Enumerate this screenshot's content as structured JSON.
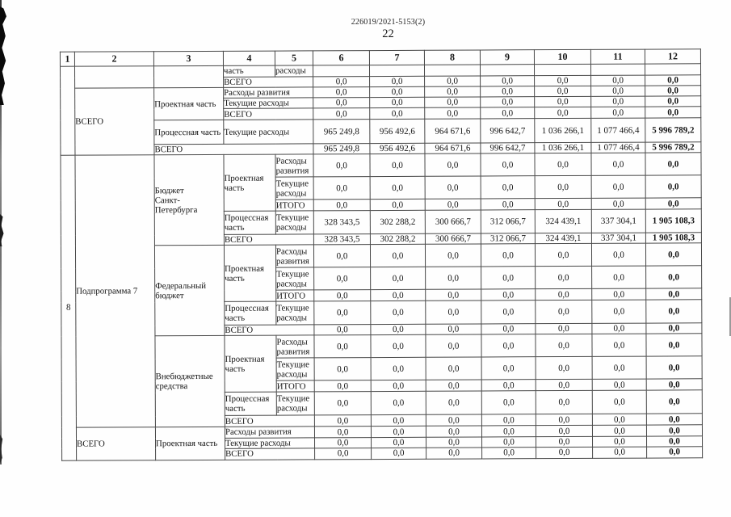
{
  "page": {
    "doc_ref": "226019/2021-5153(2)",
    "page_number": "22"
  },
  "table": {
    "rows": [
      {
        "cells": [
          {
            "t": "1",
            "k": "h"
          },
          {
            "t": "2",
            "k": "h"
          },
          {
            "t": "3",
            "k": "h"
          },
          {
            "t": "4",
            "k": "h"
          },
          {
            "t": "5",
            "k": "h"
          },
          {
            "t": "6",
            "k": "h"
          },
          {
            "t": "7",
            "k": "h"
          },
          {
            "t": "8",
            "k": "h"
          },
          {
            "t": "9",
            "k": "h"
          },
          {
            "t": "10",
            "k": "h"
          },
          {
            "t": "11",
            "k": "h"
          },
          {
            "t": "12",
            "k": "h"
          }
        ]
      },
      {
        "cells": [
          {
            "t": "",
            "k": "e",
            "rs": 7
          },
          {
            "t": "",
            "k": "e",
            "rs": 2
          },
          {
            "t": "",
            "k": "e",
            "rs": 2
          },
          {
            "t": "часть",
            "k": "l"
          },
          {
            "t": "расходы",
            "k": "l"
          },
          {
            "t": "",
            "k": "e"
          },
          {
            "t": "",
            "k": "e"
          },
          {
            "t": "",
            "k": "e"
          },
          {
            "t": "",
            "k": "e"
          },
          {
            "t": "",
            "k": "e"
          },
          {
            "t": "",
            "k": "e"
          },
          {
            "t": "",
            "k": "e"
          }
        ]
      },
      {
        "cells": [
          {
            "t": "ВСЕГО",
            "k": "l",
            "cs": 2
          },
          {
            "t": "0,0",
            "k": "n"
          },
          {
            "t": "0,0",
            "k": "n"
          },
          {
            "t": "0,0",
            "k": "n"
          },
          {
            "t": "0,0",
            "k": "n"
          },
          {
            "t": "0,0",
            "k": "n"
          },
          {
            "t": "0,0",
            "k": "n"
          },
          {
            "t": "0,0",
            "k": "nb"
          }
        ]
      },
      {
        "cells": [
          {
            "t": "ВСЕГО",
            "k": "l",
            "rs": 5
          },
          {
            "t": "Проектная часть",
            "k": "l",
            "rs": 3
          },
          {
            "t": "Расходы развития",
            "k": "l",
            "cs": 2
          },
          {
            "t": "0,0",
            "k": "n"
          },
          {
            "t": "0,0",
            "k": "n"
          },
          {
            "t": "0,0",
            "k": "n"
          },
          {
            "t": "0,0",
            "k": "n"
          },
          {
            "t": "0,0",
            "k": "n"
          },
          {
            "t": "0,0",
            "k": "n"
          },
          {
            "t": "0,0",
            "k": "nb"
          }
        ]
      },
      {
        "cells": [
          {
            "t": "Текущие расходы",
            "k": "l",
            "cs": 2
          },
          {
            "t": "0,0",
            "k": "n"
          },
          {
            "t": "0,0",
            "k": "n"
          },
          {
            "t": "0,0",
            "k": "n"
          },
          {
            "t": "0,0",
            "k": "n"
          },
          {
            "t": "0,0",
            "k": "n"
          },
          {
            "t": "0,0",
            "k": "n"
          },
          {
            "t": "0,0",
            "k": "nb"
          }
        ]
      },
      {
        "cells": [
          {
            "t": "ВСЕГО",
            "k": "l",
            "cs": 2
          },
          {
            "t": "0,0",
            "k": "n"
          },
          {
            "t": "0,0",
            "k": "n"
          },
          {
            "t": "0,0",
            "k": "n"
          },
          {
            "t": "0,0",
            "k": "n"
          },
          {
            "t": "0,0",
            "k": "n"
          },
          {
            "t": "0,0",
            "k": "n"
          },
          {
            "t": "0,0",
            "k": "nb"
          }
        ]
      },
      {
        "cells": [
          {
            "t": "Процессная часть",
            "k": "l"
          },
          {
            "t": "Текущие расходы",
            "k": "l",
            "cs": 2
          },
          {
            "t": "965 249,8",
            "k": "n"
          },
          {
            "t": "956 492,6",
            "k": "n"
          },
          {
            "t": "964 671,6",
            "k": "n"
          },
          {
            "t": "996 642,7",
            "k": "n"
          },
          {
            "t": "1 036 266,1",
            "k": "n"
          },
          {
            "t": "1 077 466,4",
            "k": "n"
          },
          {
            "t": "5 996 789,2",
            "k": "nb"
          }
        ]
      },
      {
        "cells": [
          {
            "t": "ВСЕГО",
            "k": "l",
            "cs": 3
          },
          {
            "t": "965 249,8",
            "k": "n"
          },
          {
            "t": "956 492,6",
            "k": "n"
          },
          {
            "t": "964 671,6",
            "k": "n"
          },
          {
            "t": "996 642,7",
            "k": "n"
          },
          {
            "t": "1 036 266,1",
            "k": "n"
          },
          {
            "t": "1 077 466,4",
            "k": "n"
          },
          {
            "t": "5 996 789,2",
            "k": "nb"
          }
        ]
      },
      {
        "cells": [
          {
            "t": "8",
            "k": "n",
            "rs": 18
          },
          {
            "t": "Подпрограмма 7",
            "k": "l",
            "rs": 15
          },
          {
            "t": "Бюджет\nСанкт-\nПетербурга",
            "k": "l",
            "rs": 5
          },
          {
            "t": "Проектная часть",
            "k": "l",
            "rs": 3
          },
          {
            "t": "Расходы развития",
            "k": "l"
          },
          {
            "t": "0,0",
            "k": "n"
          },
          {
            "t": "0,0",
            "k": "n"
          },
          {
            "t": "0,0",
            "k": "n"
          },
          {
            "t": "0,0",
            "k": "n"
          },
          {
            "t": "0,0",
            "k": "n"
          },
          {
            "t": "0,0",
            "k": "n"
          },
          {
            "t": "0,0",
            "k": "nb"
          }
        ]
      },
      {
        "cells": [
          {
            "t": "Текущие расходы",
            "k": "l"
          },
          {
            "t": "0,0",
            "k": "n"
          },
          {
            "t": "0,0",
            "k": "n"
          },
          {
            "t": "0,0",
            "k": "n"
          },
          {
            "t": "0,0",
            "k": "n"
          },
          {
            "t": "0,0",
            "k": "n"
          },
          {
            "t": "0,0",
            "k": "n"
          },
          {
            "t": "0,0",
            "k": "nb"
          }
        ]
      },
      {
        "cells": [
          {
            "t": "ИТОГО",
            "k": "l"
          },
          {
            "t": "0,0",
            "k": "n"
          },
          {
            "t": "0,0",
            "k": "n"
          },
          {
            "t": "0,0",
            "k": "n"
          },
          {
            "t": "0,0",
            "k": "n"
          },
          {
            "t": "0,0",
            "k": "n"
          },
          {
            "t": "0,0",
            "k": "n"
          },
          {
            "t": "0,0",
            "k": "nb"
          }
        ]
      },
      {
        "cells": [
          {
            "t": "Процессная часть",
            "k": "l"
          },
          {
            "t": "Текущие расходы",
            "k": "l"
          },
          {
            "t": "328 343,5",
            "k": "n"
          },
          {
            "t": "302 288,2",
            "k": "n"
          },
          {
            "t": "300 666,7",
            "k": "n"
          },
          {
            "t": "312 066,7",
            "k": "n"
          },
          {
            "t": "324 439,1",
            "k": "n"
          },
          {
            "t": "337 304,1",
            "k": "n"
          },
          {
            "t": "1 905 108,3",
            "k": "nb"
          }
        ]
      },
      {
        "cells": [
          {
            "t": "ВСЕГО",
            "k": "l",
            "cs": 2
          },
          {
            "t": "328 343,5",
            "k": "n"
          },
          {
            "t": "302 288,2",
            "k": "n"
          },
          {
            "t": "300 666,7",
            "k": "n"
          },
          {
            "t": "312 066,7",
            "k": "n"
          },
          {
            "t": "324 439,1",
            "k": "n"
          },
          {
            "t": "337 304,1",
            "k": "n"
          },
          {
            "t": "1 905 108,3",
            "k": "nb"
          }
        ]
      },
      {
        "cells": [
          {
            "t": "Федеральный бюджет",
            "k": "l",
            "rs": 5
          },
          {
            "t": "Проектная часть",
            "k": "l",
            "rs": 3
          },
          {
            "t": "Расходы развития",
            "k": "l"
          },
          {
            "t": "0,0",
            "k": "n"
          },
          {
            "t": "0,0",
            "k": "n"
          },
          {
            "t": "0,0",
            "k": "n"
          },
          {
            "t": "0,0",
            "k": "n"
          },
          {
            "t": "0,0",
            "k": "n"
          },
          {
            "t": "0,0",
            "k": "n"
          },
          {
            "t": "0,0",
            "k": "nb"
          }
        ]
      },
      {
        "cells": [
          {
            "t": "Текущие расходы",
            "k": "l"
          },
          {
            "t": "0,0",
            "k": "n"
          },
          {
            "t": "0,0",
            "k": "n"
          },
          {
            "t": "0,0",
            "k": "n"
          },
          {
            "t": "0,0",
            "k": "n"
          },
          {
            "t": "0,0",
            "k": "n"
          },
          {
            "t": "0,0",
            "k": "n"
          },
          {
            "t": "0,0",
            "k": "nb"
          }
        ]
      },
      {
        "cells": [
          {
            "t": "ИТОГО",
            "k": "l"
          },
          {
            "t": "0,0",
            "k": "n"
          },
          {
            "t": "0,0",
            "k": "n"
          },
          {
            "t": "0,0",
            "k": "n"
          },
          {
            "t": "0,0",
            "k": "n"
          },
          {
            "t": "0,0",
            "k": "n"
          },
          {
            "t": "0,0",
            "k": "n"
          },
          {
            "t": "0,0",
            "k": "nb"
          }
        ]
      },
      {
        "cells": [
          {
            "t": "Процессная часть",
            "k": "l"
          },
          {
            "t": "Текущие расходы",
            "k": "l"
          },
          {
            "t": "0,0",
            "k": "n"
          },
          {
            "t": "0,0",
            "k": "n"
          },
          {
            "t": "0,0",
            "k": "n"
          },
          {
            "t": "0,0",
            "k": "n"
          },
          {
            "t": "0,0",
            "k": "n"
          },
          {
            "t": "0,0",
            "k": "n"
          },
          {
            "t": "0,0",
            "k": "nb"
          }
        ]
      },
      {
        "cells": [
          {
            "t": "ВСЕГО",
            "k": "l",
            "cs": 2
          },
          {
            "t": "0,0",
            "k": "n"
          },
          {
            "t": "0,0",
            "k": "n"
          },
          {
            "t": "0,0",
            "k": "n"
          },
          {
            "t": "0,0",
            "k": "n"
          },
          {
            "t": "0,0",
            "k": "n"
          },
          {
            "t": "0,0",
            "k": "n"
          },
          {
            "t": "0,0",
            "k": "nb"
          }
        ]
      },
      {
        "cells": [
          {
            "t": "Внебюджетные средства",
            "k": "l",
            "rs": 5
          },
          {
            "t": "Проектная часть",
            "k": "l",
            "rs": 3
          },
          {
            "t": "Расходы развития",
            "k": "l"
          },
          {
            "t": "0,0",
            "k": "n"
          },
          {
            "t": "0,0",
            "k": "n"
          },
          {
            "t": "0,0",
            "k": "n"
          },
          {
            "t": "0,0",
            "k": "n"
          },
          {
            "t": "0,0",
            "k": "n"
          },
          {
            "t": "0,0",
            "k": "n"
          },
          {
            "t": "0,0",
            "k": "nb"
          }
        ]
      },
      {
        "cells": [
          {
            "t": "Текущие расходы",
            "k": "l"
          },
          {
            "t": "0,0",
            "k": "n"
          },
          {
            "t": "0,0",
            "k": "n"
          },
          {
            "t": "0,0",
            "k": "n"
          },
          {
            "t": "0,0",
            "k": "n"
          },
          {
            "t": "0,0",
            "k": "n"
          },
          {
            "t": "0,0",
            "k": "n"
          },
          {
            "t": "0,0",
            "k": "nb"
          }
        ]
      },
      {
        "cells": [
          {
            "t": "ИТОГО",
            "k": "l"
          },
          {
            "t": "0,0",
            "k": "n"
          },
          {
            "t": "0,0",
            "k": "n"
          },
          {
            "t": "0,0",
            "k": "n"
          },
          {
            "t": "0,0",
            "k": "n"
          },
          {
            "t": "0,0",
            "k": "n"
          },
          {
            "t": "0,0",
            "k": "n"
          },
          {
            "t": "0,0",
            "k": "nb"
          }
        ]
      },
      {
        "cells": [
          {
            "t": "Процессная часть",
            "k": "l"
          },
          {
            "t": "Текущие расходы",
            "k": "l"
          },
          {
            "t": "0,0",
            "k": "n"
          },
          {
            "t": "0,0",
            "k": "n"
          },
          {
            "t": "0,0",
            "k": "n"
          },
          {
            "t": "0,0",
            "k": "n"
          },
          {
            "t": "0,0",
            "k": "n"
          },
          {
            "t": "0,0",
            "k": "n"
          },
          {
            "t": "0,0",
            "k": "nb"
          }
        ]
      },
      {
        "cells": [
          {
            "t": "ВСЕГО",
            "k": "l",
            "cs": 2
          },
          {
            "t": "0,0",
            "k": "n"
          },
          {
            "t": "0,0",
            "k": "n"
          },
          {
            "t": "0,0",
            "k": "n"
          },
          {
            "t": "0,0",
            "k": "n"
          },
          {
            "t": "0,0",
            "k": "n"
          },
          {
            "t": "0,0",
            "k": "n"
          },
          {
            "t": "0,0",
            "k": "nb"
          }
        ]
      },
      {
        "cells": [
          {
            "t": "ВСЕГО",
            "k": "l",
            "rs": 3
          },
          {
            "t": "Проектная часть",
            "k": "l",
            "rs": 3
          },
          {
            "t": "Расходы развития",
            "k": "l",
            "cs": 2
          },
          {
            "t": "0,0",
            "k": "n"
          },
          {
            "t": "0,0",
            "k": "n"
          },
          {
            "t": "0,0",
            "k": "n"
          },
          {
            "t": "0,0",
            "k": "n"
          },
          {
            "t": "0,0",
            "k": "n"
          },
          {
            "t": "0,0",
            "k": "n"
          },
          {
            "t": "0,0",
            "k": "nb"
          }
        ]
      },
      {
        "cells": [
          {
            "t": "Текущие расходы",
            "k": "l",
            "cs": 2
          },
          {
            "t": "0,0",
            "k": "n"
          },
          {
            "t": "0,0",
            "k": "n"
          },
          {
            "t": "0,0",
            "k": "n"
          },
          {
            "t": "0,0",
            "k": "n"
          },
          {
            "t": "0,0",
            "k": "n"
          },
          {
            "t": "0,0",
            "k": "n"
          },
          {
            "t": "0,0",
            "k": "nb"
          }
        ]
      },
      {
        "cells": [
          {
            "t": "ВСЕГО",
            "k": "l",
            "cs": 2
          },
          {
            "t": "0,0",
            "k": "n"
          },
          {
            "t": "0,0",
            "k": "n"
          },
          {
            "t": "0,0",
            "k": "n"
          },
          {
            "t": "0,0",
            "k": "n"
          },
          {
            "t": "0,0",
            "k": "n"
          },
          {
            "t": "0,0",
            "k": "n"
          },
          {
            "t": "0,0",
            "k": "nb"
          }
        ]
      }
    ]
  }
}
